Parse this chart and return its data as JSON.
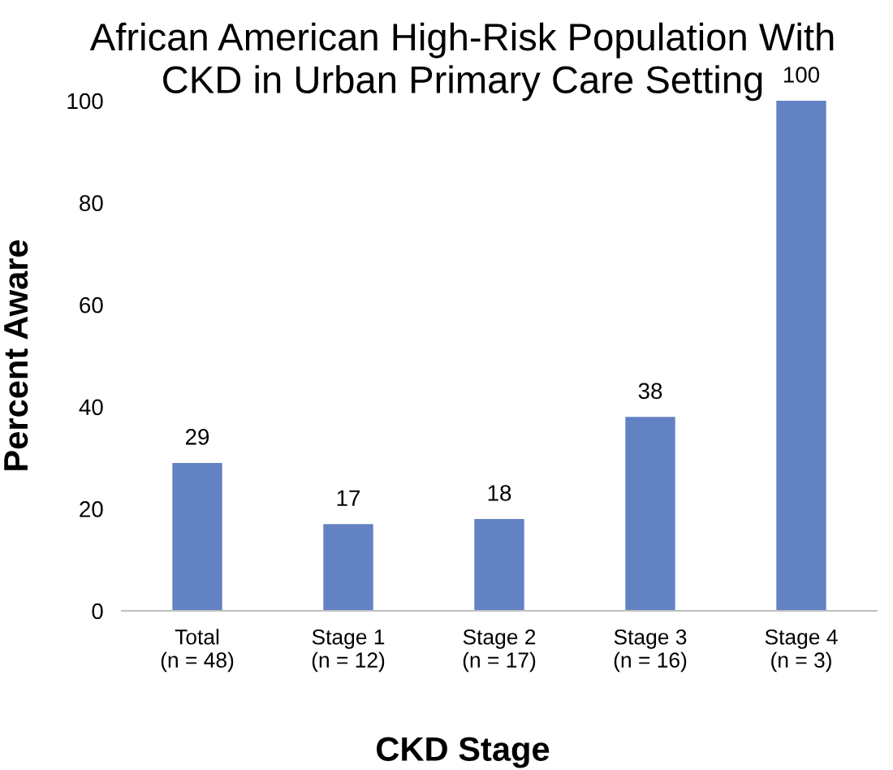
{
  "chart_data": {
    "type": "bar",
    "title": "African American High-Risk Population With\nCKD in Urban Primary Care Setting",
    "xlabel": "CKD Stage",
    "ylabel": "Percent Aware",
    "categories": [
      "Total\n(n = 48)",
      "Stage 1\n(n = 12)",
      "Stage 2\n(n = 17)",
      "Stage 3\n(n = 16)",
      "Stage 4\n(n = 3)"
    ],
    "values": [
      29,
      17,
      18,
      38,
      100
    ],
    "color": "#6382c4",
    "ylim": [
      0,
      100
    ],
    "yticks": [
      0,
      20,
      40,
      60,
      80,
      100
    ],
    "data_labels": true,
    "grid": false,
    "legend": false
  }
}
